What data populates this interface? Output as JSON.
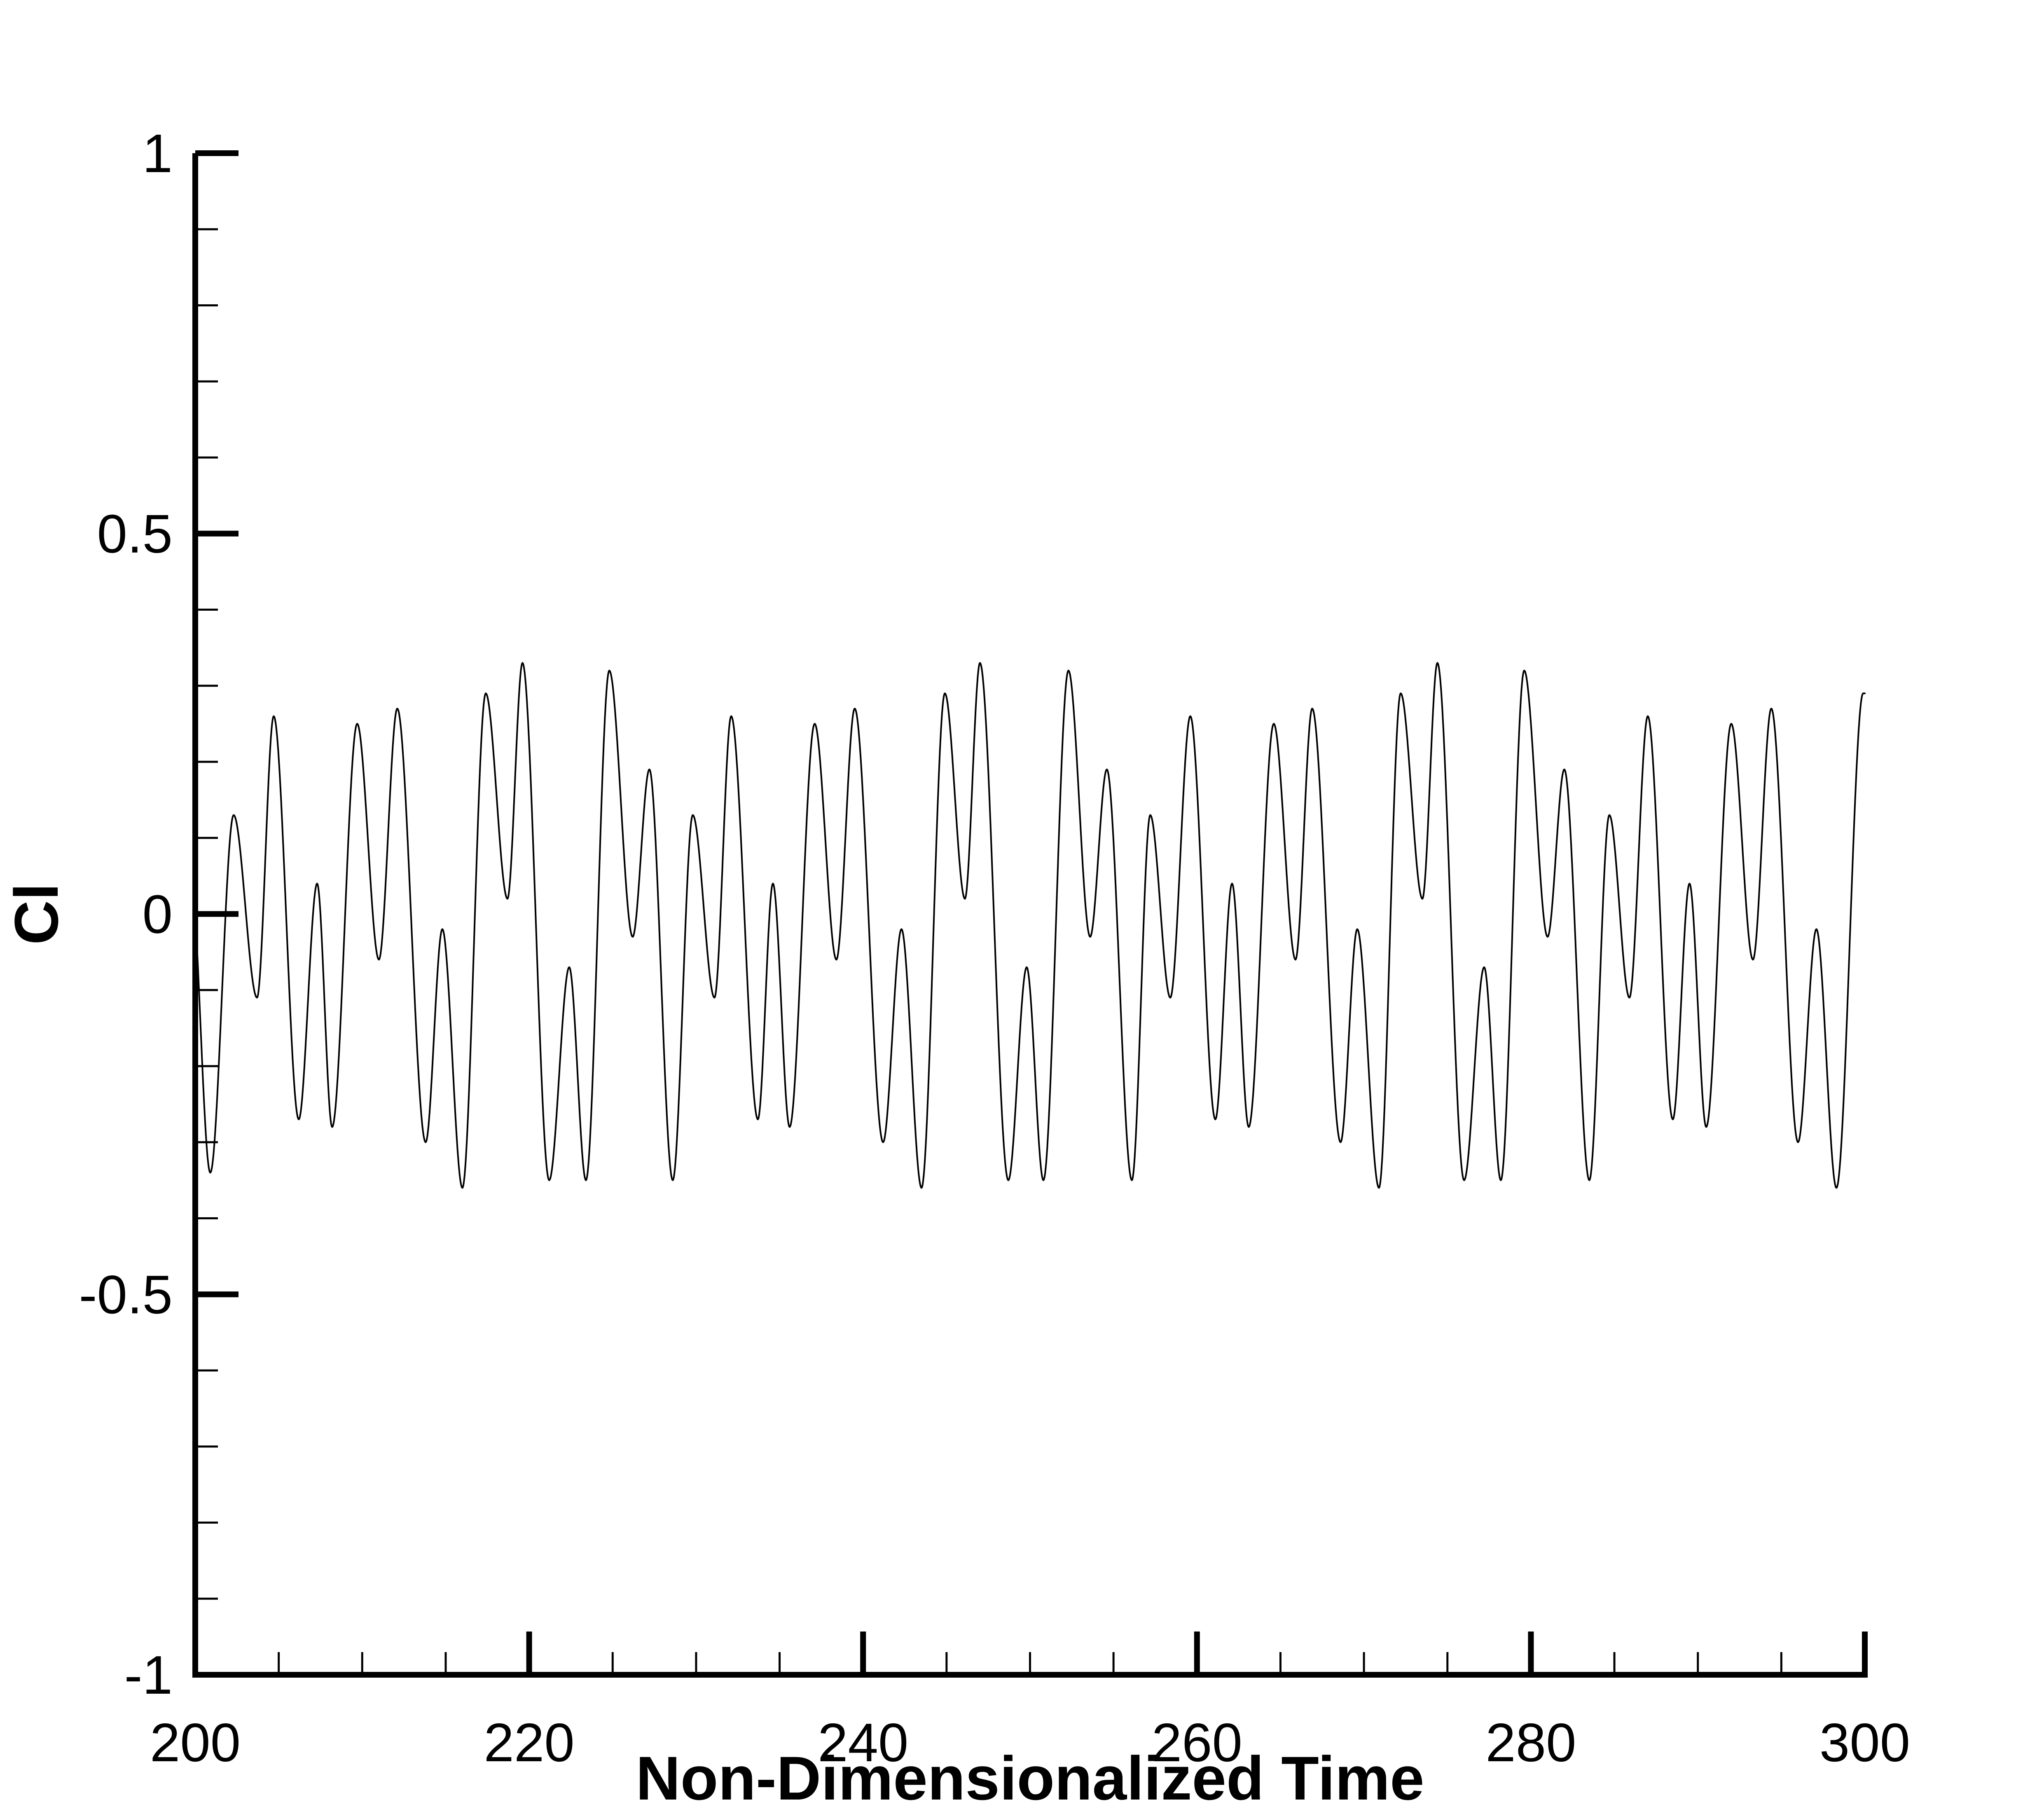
{
  "chart_data": {
    "type": "line",
    "title": "",
    "xlabel": "Non-Dimensionalized Time",
    "ylabel": "Cl",
    "xlim": [
      200,
      300
    ],
    "ylim": [
      -1,
      1
    ],
    "x_ticks": [
      200,
      220,
      240,
      260,
      280,
      300
    ],
    "x_tick_labels": [
      "200",
      "220",
      "240",
      "260",
      "280",
      "300"
    ],
    "x_minor_step": 5,
    "y_ticks": [
      -1,
      -0.5,
      0,
      0.5,
      1
    ],
    "y_tick_labels": [
      "-1",
      "-0.5",
      "0",
      "0.5",
      "1"
    ],
    "y_minor_step": 0.1,
    "grid": false,
    "legend": "none",
    "line_color": "#000000",
    "series": [
      {
        "peaks": [
          [
            200.0,
            0.0
          ],
          [
            200.9,
            -0.34
          ],
          [
            202.3,
            0.13
          ],
          [
            203.7,
            -0.11
          ],
          [
            204.7,
            0.26
          ],
          [
            206.2,
            -0.27
          ],
          [
            207.3,
            0.04
          ],
          [
            208.2,
            -0.28
          ],
          [
            209.7,
            0.25
          ],
          [
            211.0,
            -0.06
          ],
          [
            212.1,
            0.27
          ],
          [
            213.8,
            -0.3
          ],
          [
            214.8,
            -0.02
          ],
          [
            216.0,
            -0.36
          ],
          [
            217.4,
            0.29
          ],
          [
            218.7,
            0.02
          ],
          [
            219.6,
            0.33
          ],
          [
            221.2,
            -0.35
          ],
          [
            222.4,
            -0.07
          ],
          [
            223.4,
            -0.35
          ],
          [
            224.8,
            0.32
          ],
          [
            226.2,
            -0.03
          ],
          [
            227.2,
            0.19
          ],
          [
            228.6,
            -0.35
          ],
          [
            229.8,
            0.13
          ],
          [
            231.1,
            -0.11
          ],
          [
            232.1,
            0.26
          ],
          [
            233.7,
            -0.27
          ],
          [
            234.6,
            0.04
          ],
          [
            235.6,
            -0.28
          ],
          [
            237.1,
            0.25
          ],
          [
            238.4,
            -0.06
          ],
          [
            239.5,
            0.27
          ],
          [
            241.2,
            -0.3
          ],
          [
            242.3,
            -0.02
          ],
          [
            243.5,
            -0.36
          ],
          [
            244.9,
            0.29
          ],
          [
            246.1,
            0.02
          ],
          [
            247.0,
            0.33
          ],
          [
            248.7,
            -0.35
          ],
          [
            249.8,
            -0.07
          ],
          [
            250.8,
            -0.35
          ],
          [
            252.3,
            0.32
          ],
          [
            253.6,
            -0.03
          ],
          [
            254.6,
            0.19
          ],
          [
            256.1,
            -0.35
          ],
          [
            257.2,
            0.13
          ],
          [
            258.4,
            -0.11
          ],
          [
            259.6,
            0.26
          ],
          [
            261.1,
            -0.27
          ],
          [
            262.1,
            0.04
          ],
          [
            263.1,
            -0.28
          ],
          [
            264.6,
            0.25
          ],
          [
            265.9,
            -0.06
          ],
          [
            266.9,
            0.27
          ],
          [
            268.6,
            -0.3
          ],
          [
            269.6,
            -0.02
          ],
          [
            270.9,
            -0.36
          ],
          [
            272.2,
            0.29
          ],
          [
            273.5,
            0.02
          ],
          [
            274.4,
            0.33
          ],
          [
            276.0,
            -0.35
          ],
          [
            277.2,
            -0.07
          ],
          [
            278.2,
            -0.35
          ],
          [
            279.6,
            0.32
          ],
          [
            281.0,
            -0.03
          ],
          [
            282.0,
            0.19
          ],
          [
            283.5,
            -0.35
          ],
          [
            284.7,
            0.13
          ],
          [
            285.9,
            -0.11
          ],
          [
            287.0,
            0.26
          ],
          [
            288.5,
            -0.27
          ],
          [
            289.5,
            0.04
          ],
          [
            290.5,
            -0.28
          ],
          [
            292.0,
            0.25
          ],
          [
            293.3,
            -0.06
          ],
          [
            294.4,
            0.27
          ],
          [
            296.0,
            -0.3
          ],
          [
            297.1,
            -0.02
          ],
          [
            298.3,
            -0.36
          ],
          [
            299.9,
            0.29
          ],
          [
            300.0,
            0.29
          ]
        ]
      }
    ]
  }
}
